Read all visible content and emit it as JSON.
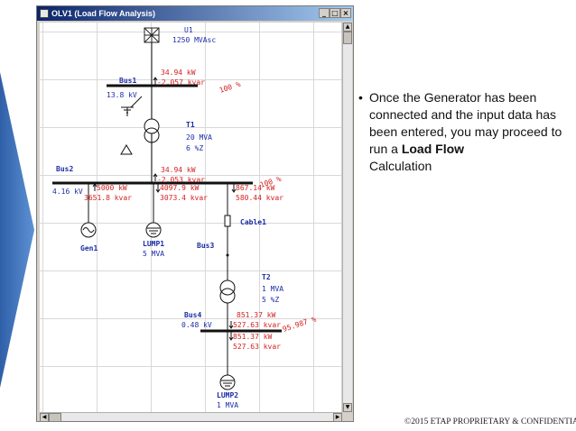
{
  "window": {
    "title": "OLV1 (Load Flow Analysis)",
    "min_label": "_",
    "max_label": "□",
    "close_label": "×"
  },
  "diagram": {
    "utility": {
      "name": "U1",
      "rating": "1250 MVAsc"
    },
    "bus1": {
      "name": "Bus1",
      "voltage": "13.8 kV",
      "flow_kw": "34.94 kW",
      "flow_kvar": "-2.057 kvar",
      "loading": "100 %"
    },
    "t1": {
      "name": "T1",
      "rating": "20 MVA",
      "impedance": "6 %Z"
    },
    "bus2": {
      "name": "Bus2",
      "voltage": "4.16 kV",
      "flow_kw": "34.94 kW",
      "flow_kvar": "-2.053 kvar",
      "loading": "100 %",
      "gen_kw": "5000 kW",
      "gen_kvar": "3651.8 kvar",
      "lump1_kw": "4097.9 kW",
      "lump1_kvar": "3073.4 kvar",
      "cable_kw": "867.14 kW",
      "cable_kvar": "580.44 kvar"
    },
    "gen1": {
      "name": "Gen1"
    },
    "lump1": {
      "name": "LUMP1",
      "rating": "5 MVA"
    },
    "cable1": {
      "name": "Cable1"
    },
    "bus3": {
      "name": "Bus3"
    },
    "t2": {
      "name": "T2",
      "rating": "1 MVA",
      "impedance": "5 %Z"
    },
    "bus4": {
      "name": "Bus4",
      "voltage": "0.48 kV",
      "in_kw": "851.37 kW",
      "in_kvar": "527.63 kvar",
      "loading": "95.987 %",
      "out_kw": "851.37 kW",
      "out_kvar": "527.63 kvar"
    },
    "lump2": {
      "name": "LUMP2",
      "rating": "1 MVA"
    }
  },
  "slide": {
    "bullet_pre": "Once the Generator has been connected and the input data has been entered, you may proceed to run a ",
    "bullet_bold": "Load Flow",
    "bullet_post": "Calculation",
    "footer": "©2015 ETAP PROPRIETARY & CONFIDENTIAL"
  },
  "colors": {
    "accent_blue": "#3b6db4",
    "label_blue": "#1c2ca8",
    "value_red": "#d42020",
    "chevron": "#4a7fc1"
  }
}
